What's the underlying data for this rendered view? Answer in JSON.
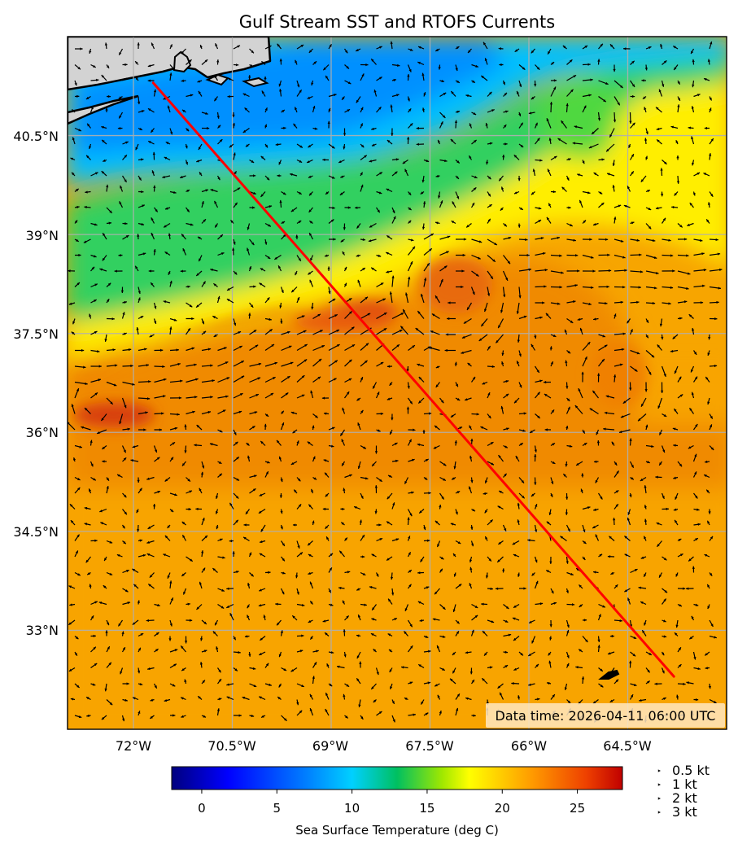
{
  "title": "Gulf Stream SST and RTOFS Currents",
  "data_time": "Data time: 2026-04-11 06:00 UTC",
  "lon_ticks": [
    "72°W",
    "70.5°W",
    "69°W",
    "67.5°W",
    "66°W",
    "64.5°W"
  ],
  "lat_ticks": [
    "40.5°N",
    "39°N",
    "37.5°N",
    "36°N",
    "34.5°N",
    "33°N"
  ],
  "colorbar": {
    "label": "Sea Surface Temperature (deg C)",
    "ticks": [
      "0",
      "5",
      "10",
      "15",
      "20",
      "25"
    ],
    "range": [
      -2,
      28
    ]
  },
  "quiver_key": {
    "items": [
      {
        "label": "0.5 kt",
        "speed": 0.5
      },
      {
        "label": "1 kt",
        "speed": 1
      },
      {
        "label": "2 kt",
        "speed": 2
      },
      {
        "label": "3 kt",
        "speed": 3
      }
    ]
  },
  "track": {
    "color": "#ff0000",
    "start": {
      "lon": -71.7,
      "lat": 41.3
    },
    "end": {
      "lon": -63.8,
      "lat": 32.3
    }
  },
  "colors": {
    "land": "#d3d3d3",
    "coast": "#000000",
    "grid": "#b0b0b0",
    "cold": "#0080ff",
    "cool": "#00c8ff",
    "mid": "#20c060",
    "warm_yellow": "#ffee00",
    "warm": "#f7a500",
    "hot": "#e05010"
  }
}
